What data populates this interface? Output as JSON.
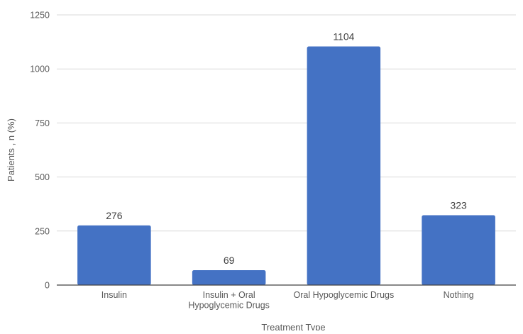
{
  "chart_data": {
    "type": "bar",
    "title": "",
    "xlabel": "Treatment Type",
    "ylabel": "Patients , n (%)",
    "categories": [
      [
        "Insulin"
      ],
      [
        "Insulin + Oral",
        "Hypoglycemic Drugs"
      ],
      [
        "Oral Hypoglycemic Drugs"
      ],
      [
        "Nothing"
      ]
    ],
    "values": [
      276,
      69,
      1104,
      323
    ],
    "data_labels": [
      "276",
      "69",
      "1104",
      "323"
    ],
    "ylim": [
      0,
      1250
    ],
    "yticks": [
      0,
      250,
      500,
      750,
      1000,
      1250
    ],
    "ytick_labels": [
      "0",
      "250",
      "500",
      "750",
      "1000",
      "1250"
    ],
    "grid": true,
    "legend": "none",
    "bar_color": "#4472C4",
    "grid_color": "#d9d9d9",
    "axis_color": "#404040"
  }
}
